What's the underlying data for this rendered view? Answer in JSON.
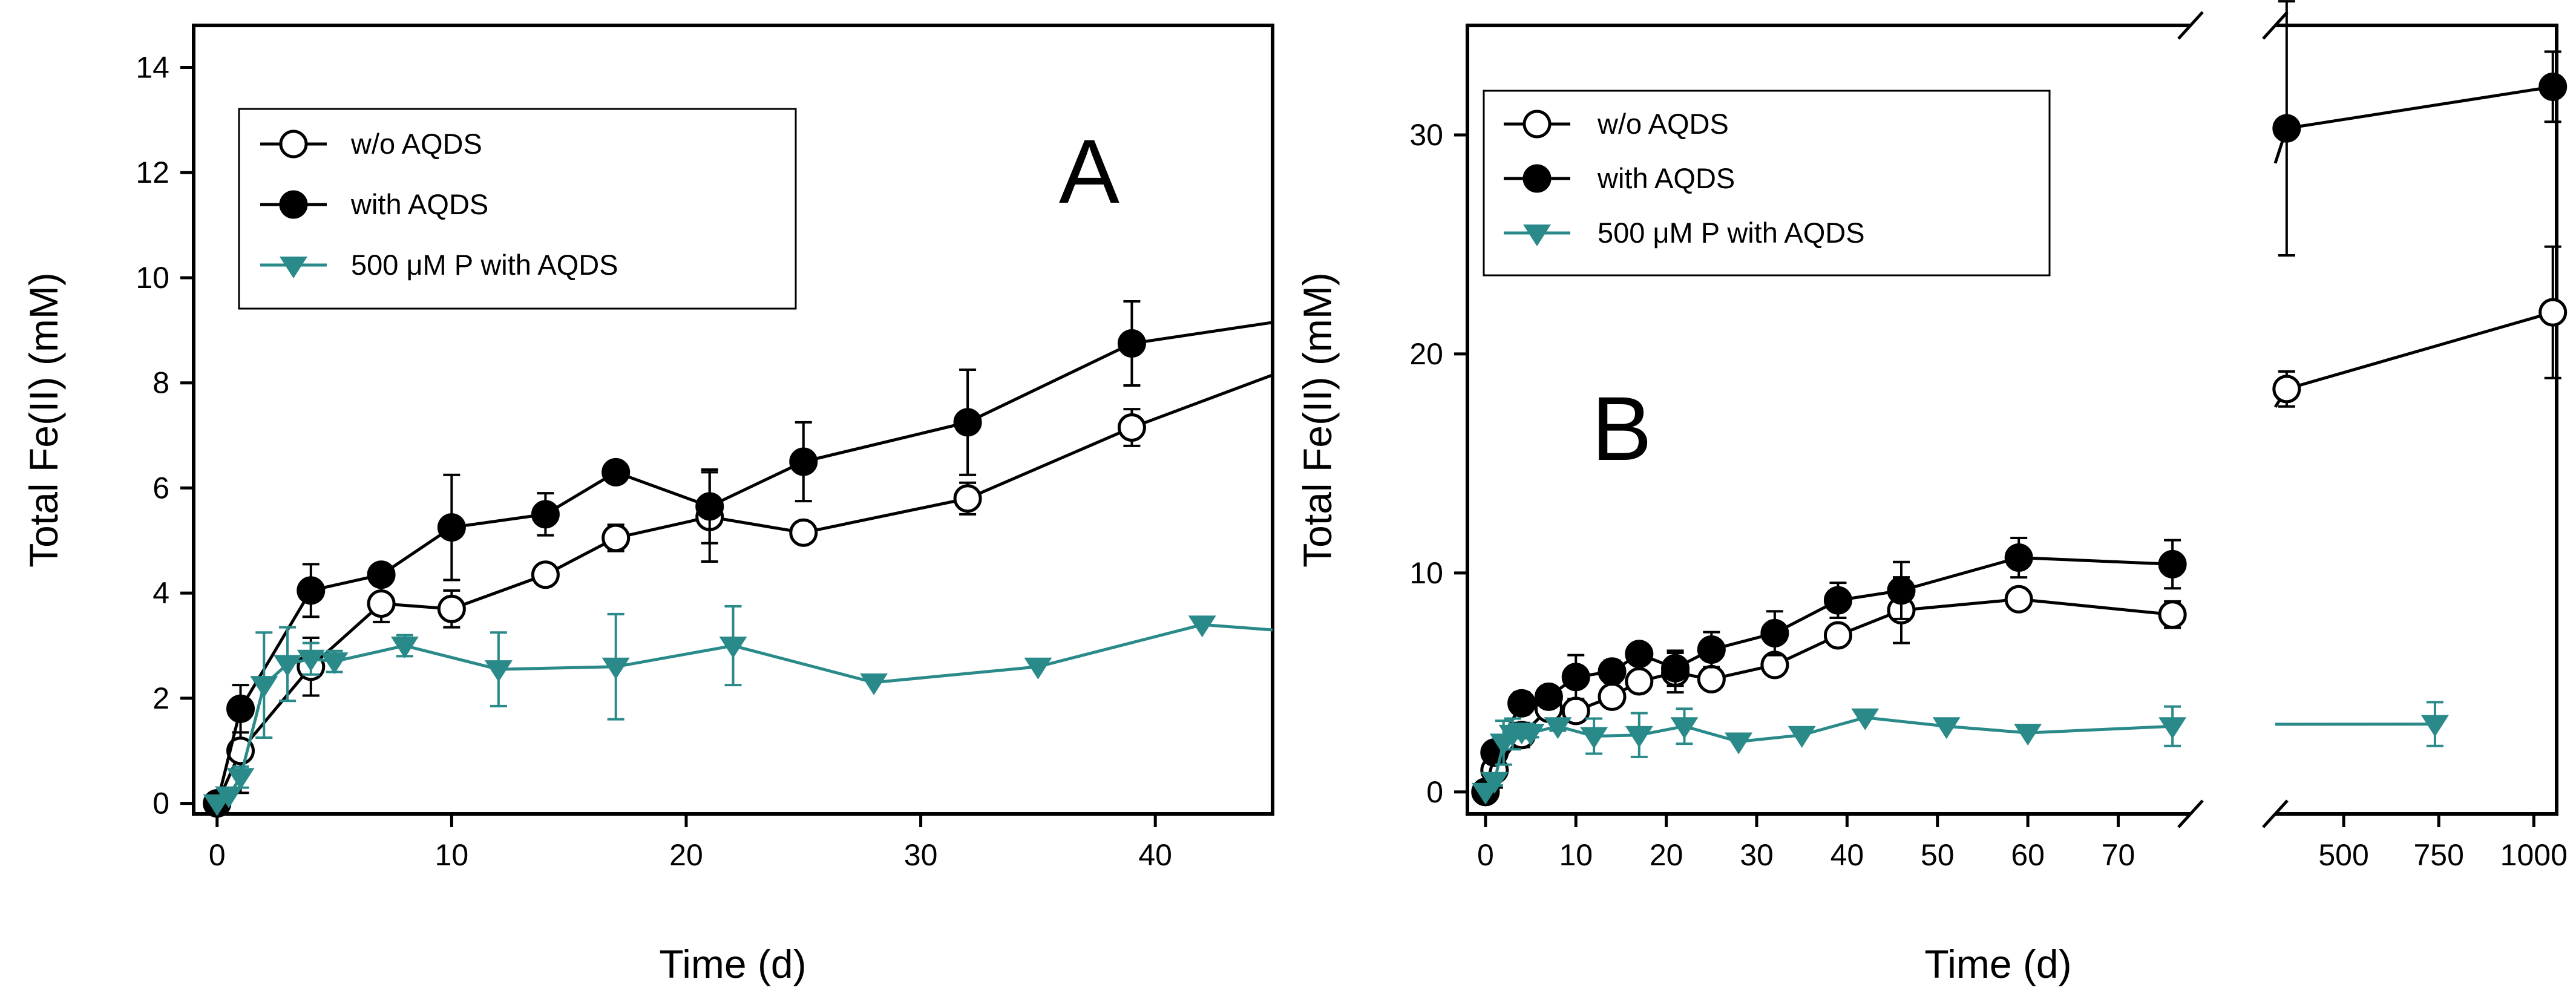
{
  "colors": {
    "black": "#000000",
    "teal": "#2a8a8a",
    "white": "#ffffff"
  },
  "chart_data": [
    {
      "id": "A",
      "type": "line",
      "panel_label": "A",
      "xlabel": "Time (d)",
      "ylabel": "Total Fe(II) (mM)",
      "xlim": [
        -1,
        45
      ],
      "ylim": [
        -0.2,
        14.8
      ],
      "xticks": [
        0,
        10,
        20,
        30,
        40
      ],
      "yticks": [
        0,
        2,
        4,
        6,
        8,
        10,
        12,
        14
      ],
      "legend": {
        "placement": "top-left",
        "entries": [
          "w/o AQDS",
          "with AQDS",
          "500 μM P with AQDS"
        ]
      },
      "series": [
        {
          "name": "w/o AQDS",
          "marker": "circle-open",
          "color": "#000000",
          "x": [
            0,
            1,
            4,
            7,
            10,
            14,
            17,
            21,
            25,
            32,
            39
          ],
          "y": [
            0,
            1.0,
            2.6,
            3.8,
            3.7,
            4.35,
            5.05,
            5.45,
            5.15,
            5.8,
            7.15
          ],
          "err": [
            0.2,
            0.8,
            0.55,
            0.35,
            0.35,
            0.15,
            0.25,
            0.85,
            0.12,
            0.3,
            0.35
          ],
          "tail_y": 8.15
        },
        {
          "name": "with AQDS",
          "marker": "circle-filled",
          "color": "#000000",
          "x": [
            0,
            1,
            4,
            7,
            10,
            14,
            17,
            21,
            25,
            32,
            39
          ],
          "y": [
            0,
            1.8,
            4.05,
            4.35,
            5.25,
            5.5,
            6.3,
            5.65,
            6.5,
            7.25,
            8.75
          ],
          "err": [
            0.1,
            0.45,
            0.5,
            0.2,
            1.0,
            0.4,
            0.15,
            0.7,
            0.75,
            1.0,
            0.8
          ],
          "tail_y": 9.15
        },
        {
          "name": "500 μM P with AQDS",
          "marker": "triangle-down",
          "color": "#2a8a8a",
          "x": [
            0,
            0.5,
            1,
            2,
            3,
            4,
            5,
            8,
            12,
            17,
            22,
            28,
            35,
            42
          ],
          "y": [
            0,
            0.15,
            0.5,
            2.25,
            2.65,
            2.75,
            2.7,
            3.0,
            2.55,
            2.6,
            3.0,
            2.3,
            2.6,
            3.4
          ],
          "err": [
            0,
            0,
            0.2,
            1.0,
            0.7,
            0.3,
            0.2,
            0.2,
            0.7,
            1.0,
            0.75,
            0,
            0,
            0
          ],
          "tail_y": 3.3
        }
      ]
    },
    {
      "id": "B",
      "type": "line",
      "panel_label": "B",
      "xlabel": "Time (d)",
      "ylabel": "Total Fe(II) (mM)",
      "broken_x_axis": true,
      "ylim": [
        -1,
        35
      ],
      "yticks": [
        0,
        10,
        20,
        30
      ],
      "segments": [
        {
          "xlim": [
            -2,
            78
          ],
          "xticks": [
            0,
            10,
            20,
            30,
            40,
            50,
            60,
            70
          ]
        },
        {
          "xlim": [
            320,
            1060
          ],
          "xticks": [
            500,
            750,
            1000
          ]
        }
      ],
      "legend": {
        "placement": "top-left",
        "entries": [
          "w/o AQDS",
          "with AQDS",
          "500 μM P with AQDS"
        ]
      },
      "series": [
        {
          "name": "w/o AQDS",
          "marker": "circle-open",
          "color": "#000000",
          "x": [
            0,
            1,
            4,
            7,
            10,
            14,
            17,
            21,
            25,
            32,
            39,
            46,
            59,
            76,
            350,
            1050
          ],
          "y": [
            0,
            1.0,
            2.6,
            3.8,
            3.7,
            4.35,
            5.05,
            5.45,
            5.15,
            5.8,
            7.15,
            8.3,
            8.8,
            8.1,
            18.4,
            21.9
          ],
          "err": [
            0.3,
            0.8,
            0.55,
            0.35,
            0.5,
            0.2,
            0.3,
            0.9,
            0.2,
            0.3,
            0.4,
            1.5,
            0.3,
            0.6,
            0.8,
            3.0
          ]
        },
        {
          "name": "with AQDS",
          "marker": "circle-filled",
          "color": "#000000",
          "x": [
            0,
            1,
            4,
            7,
            10,
            14,
            17,
            21,
            25,
            32,
            39,
            46,
            59,
            76,
            350,
            1050
          ],
          "y": [
            0,
            1.8,
            4.05,
            4.35,
            5.25,
            5.5,
            6.3,
            5.65,
            6.5,
            7.25,
            8.75,
            9.2,
            10.7,
            10.4,
            30.3,
            32.2
          ],
          "err": [
            0.2,
            0.45,
            0.5,
            0.3,
            1.0,
            0.5,
            0.2,
            0.8,
            0.8,
            1.0,
            0.8,
            1.3,
            0.9,
            1.1,
            5.8,
            1.6
          ]
        },
        {
          "name": "500 μM P with AQDS",
          "marker": "triangle-down",
          "color": "#2a8a8a",
          "x": [
            0,
            1,
            2,
            3,
            4,
            5,
            8,
            12,
            17,
            22,
            28,
            35,
            42,
            51,
            60,
            76,
            740
          ],
          "y": [
            0,
            0.5,
            2.25,
            2.65,
            2.75,
            2.7,
            3.0,
            2.55,
            2.6,
            3.0,
            2.3,
            2.6,
            3.4,
            3.0,
            2.7,
            3.0,
            3.1
          ],
          "err": [
            0,
            0.2,
            1.0,
            0.7,
            0.3,
            0.2,
            0.2,
            0.8,
            1.0,
            0.8,
            0,
            0,
            0,
            0,
            0,
            0.9,
            1.0
          ]
        }
      ]
    }
  ]
}
